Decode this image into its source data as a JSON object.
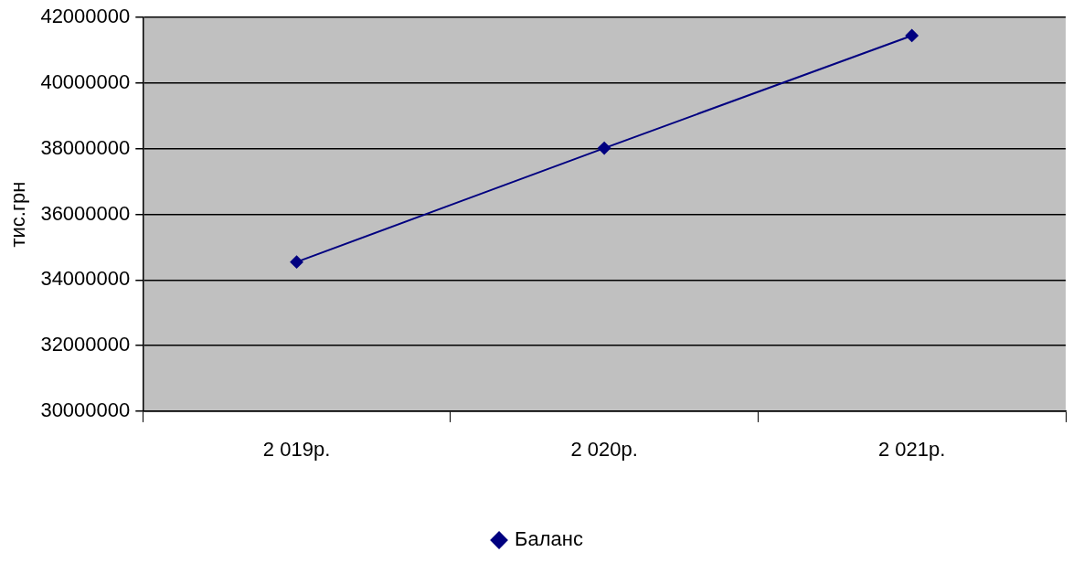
{
  "chart_data": {
    "type": "line",
    "ylabel": "тис.грн",
    "categories": [
      "2 019р.",
      "2 020р.",
      "2 021р."
    ],
    "series": [
      {
        "name": "Баланс",
        "color": "#000080",
        "values": [
          34550000,
          38020000,
          41450000
        ]
      }
    ],
    "ylim": [
      30000000,
      42000000
    ],
    "yticks": [
      30000000,
      32000000,
      34000000,
      36000000,
      38000000,
      40000000,
      42000000
    ],
    "grid": "y",
    "legend": "bottom",
    "marker": "diamond",
    "line_style": "solid"
  }
}
